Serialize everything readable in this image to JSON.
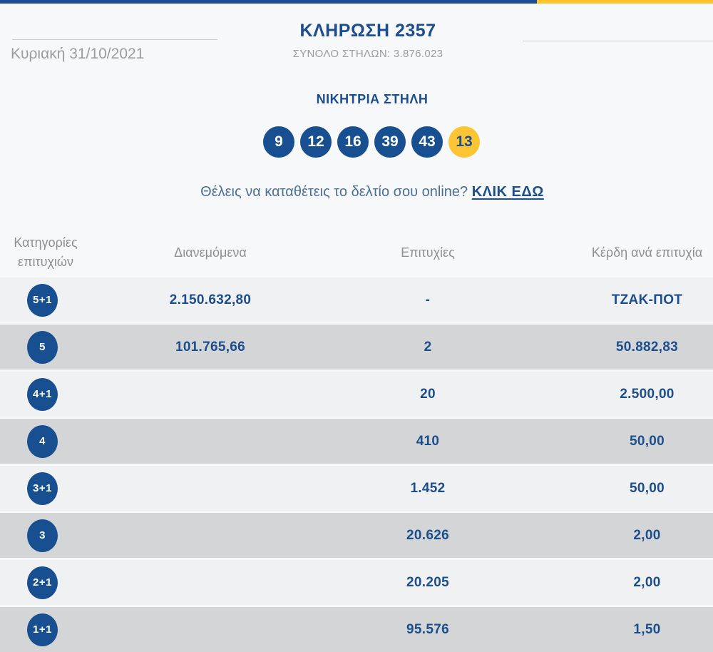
{
  "header": {
    "title": "ΚΛΗΡΩΣΗ 2357",
    "date": "Κυριακή 31/10/2021",
    "total_columns": "ΣΥΝΟΛΟ ΣΤΗΛΩΝ: 3.876.023"
  },
  "winning": {
    "heading": "ΝΙΚΗΤΡΙΑ ΣΤΗΛΗ",
    "numbers": [
      "9",
      "12",
      "16",
      "39",
      "43"
    ],
    "joker": "13"
  },
  "online": {
    "question": "Θέλεις να καταθέτεις το δελτίο σου online?",
    "link_label": "ΚΛΙΚ ΕΔΩ"
  },
  "table": {
    "header_category_line1": "Κατηγορίες",
    "header_category_line2": "επιτυχιών",
    "header_distributed": "Διανεμόμενα",
    "header_winners": "Επιτυχίες",
    "header_prize": "Κέρδη ανά επιτυχία",
    "rows": [
      {
        "category": "5+1",
        "distributed": "2.150.632,80",
        "winners": "-",
        "prize": "ΤΖΑΚ-ΠΟΤ"
      },
      {
        "category": "5",
        "distributed": "101.765,66",
        "winners": "2",
        "prize": "50.882,83"
      },
      {
        "category": "4+1",
        "distributed": "",
        "winners": "20",
        "prize": "2.500,00"
      },
      {
        "category": "4",
        "distributed": "",
        "winners": "410",
        "prize": "50,00"
      },
      {
        "category": "3+1",
        "distributed": "",
        "winners": "1.452",
        "prize": "50,00"
      },
      {
        "category": "3",
        "distributed": "",
        "winners": "20.626",
        "prize": "2,00"
      },
      {
        "category": "2+1",
        "distributed": "",
        "winners": "20.205",
        "prize": "2,00"
      },
      {
        "category": "1+1",
        "distributed": "",
        "winners": "95.576",
        "prize": "1,50"
      }
    ]
  },
  "colors": {
    "primary_blue": "#1c4e8e",
    "ball_blue": "#174f90",
    "accent_yellow": "#fdc42d",
    "row_light": "#f0f1f2",
    "row_dark": "#d4d5d7",
    "muted_gray": "#9c9c9c"
  }
}
